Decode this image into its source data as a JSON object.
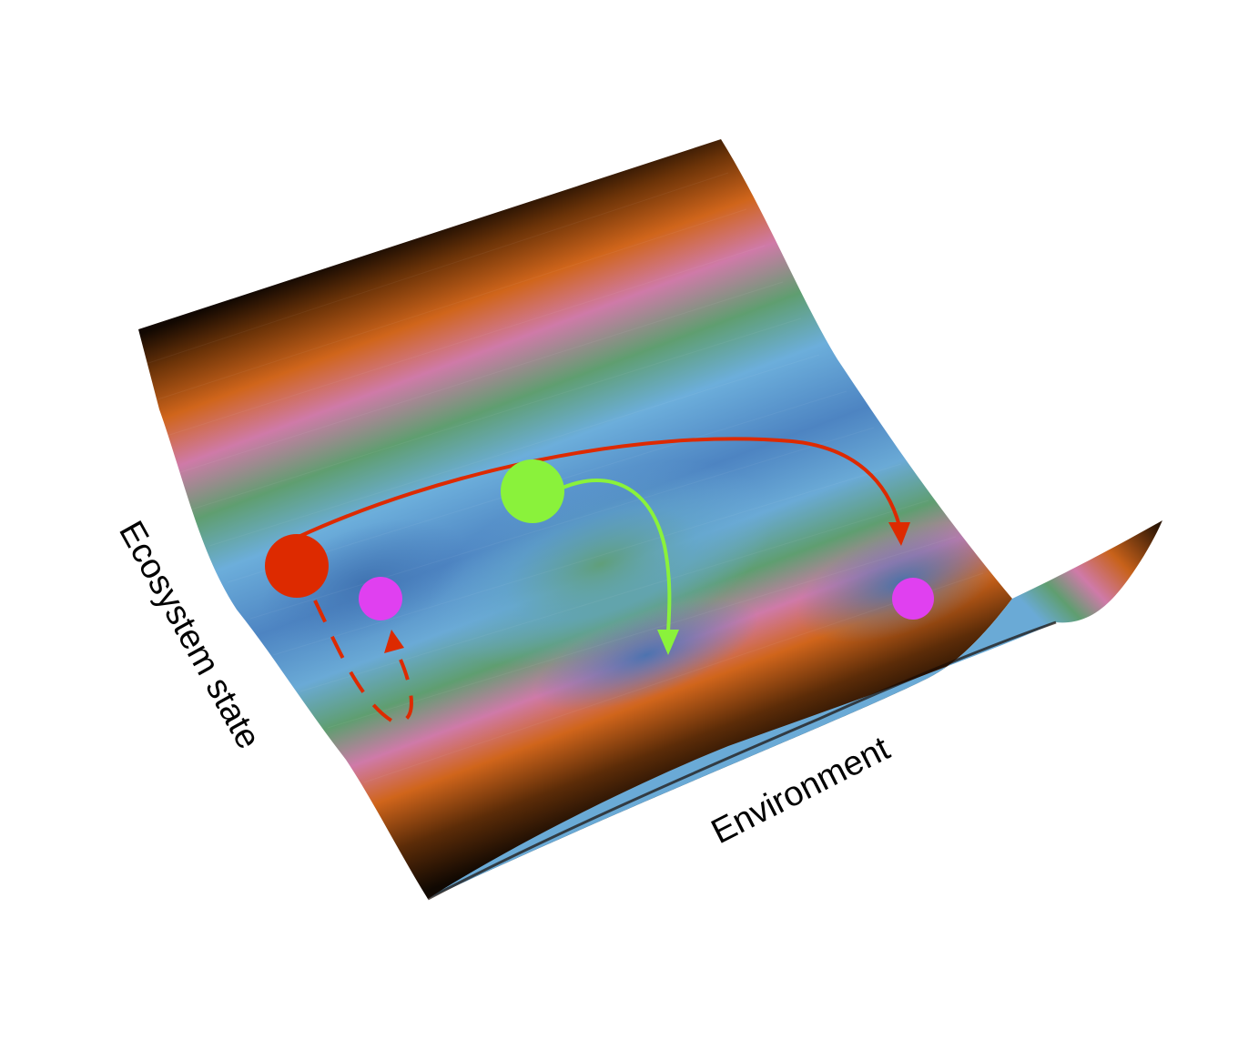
{
  "diagram": {
    "axes": {
      "y_label": "Ecosystem state",
      "x_label": "Environment"
    },
    "surface": {
      "colormap": [
        "#1a0c04",
        "#5c2c08",
        "#c8621a",
        "#cf7aa8",
        "#5b9c6f",
        "#6aaad8",
        "#4a7fbd"
      ]
    },
    "balls": [
      {
        "name": "red-ball",
        "color": "#dd2a00"
      },
      {
        "name": "green-ball",
        "color": "#8af23b"
      },
      {
        "name": "magenta-ball-left",
        "color": "#e040f0"
      },
      {
        "name": "magenta-ball-right",
        "color": "#e040f0"
      }
    ],
    "arrows": [
      {
        "name": "red-long-arrow",
        "color": "#dd2a00",
        "style": "solid"
      },
      {
        "name": "green-arrow",
        "color": "#8af23b",
        "style": "solid"
      },
      {
        "name": "red-dashed-arrow",
        "color": "#dd2a00",
        "style": "dashed"
      }
    ]
  }
}
